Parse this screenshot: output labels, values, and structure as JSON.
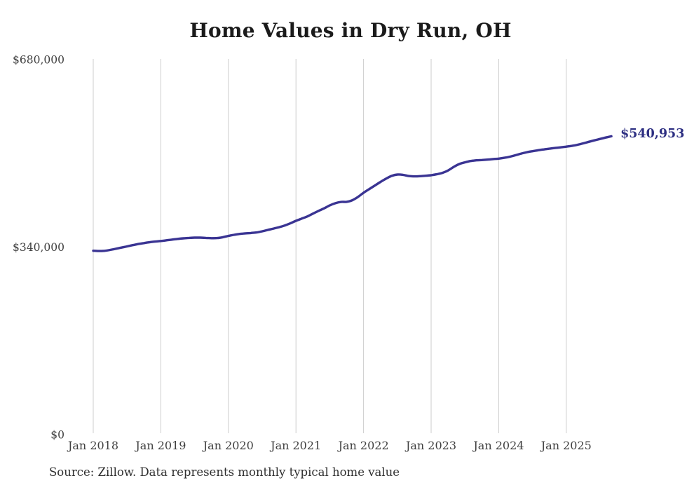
{
  "chart_title": "Home Values in Dry Run, OH",
  "source_note": "Source: Zillow. Data represents monthly typical home value",
  "colors": {
    "line": "#3a3493",
    "end_label": "#2d2f82",
    "title": "#1b1b1b",
    "axis_text": "#3f3f3f",
    "gridline": "#cdcdcd",
    "background": "#ffffff"
  },
  "chart_data": {
    "type": "line",
    "title": "Home Values in Dry Run, OH",
    "xlabel": "",
    "ylabel": "",
    "ylim": [
      0,
      680000
    ],
    "grid": "vertical-only",
    "legend": "none",
    "frequency": "monthly",
    "start_month": "2018-01",
    "end_month": "2025-09",
    "end_label": "$540,953",
    "end_value": 540953,
    "source": "Source: Zillow. Data represents monthly typical home value",
    "y_ticks": [
      {
        "label": "$0",
        "value": 0
      },
      {
        "label": "$340,000",
        "value": 340000
      },
      {
        "label": "$680,000",
        "value": 680000
      }
    ],
    "x_ticks": [
      {
        "label": "Jan 2018",
        "month_index": 0
      },
      {
        "label": "Jan 2019",
        "month_index": 12
      },
      {
        "label": "Jan 2020",
        "month_index": 24
      },
      {
        "label": "Jan 2021",
        "month_index": 36
      },
      {
        "label": "Jan 2022",
        "month_index": 48
      },
      {
        "label": "Jan 2023",
        "month_index": 60
      },
      {
        "label": "Jan 2024",
        "month_index": 72
      },
      {
        "label": "Jan 2025",
        "month_index": 84
      }
    ],
    "series": [
      {
        "name": "Typical home value",
        "values": [
          333400,
          332900,
          333300,
          334900,
          336900,
          339100,
          341300,
          343500,
          345600,
          347300,
          348800,
          350000,
          351000,
          352300,
          353600,
          354900,
          355900,
          356700,
          357100,
          357100,
          356700,
          356200,
          356400,
          357900,
          360300,
          362300,
          363900,
          364900,
          365600,
          366600,
          368600,
          371100,
          373600,
          376100,
          379100,
          383100,
          387700,
          391600,
          395600,
          400600,
          405600,
          410300,
          415600,
          419600,
          421900,
          422100,
          424900,
          430900,
          438500,
          445100,
          451600,
          458100,
          464100,
          469100,
          471600,
          471100,
          468900,
          468300,
          468600,
          469400,
          470300,
          472100,
          474600,
          478900,
          485300,
          490600,
          493700,
          496100,
          497300,
          497900,
          498600,
          499600,
          500400,
          501900,
          503900,
          506600,
          509600,
          512100,
          513900,
          515600,
          517100,
          518500,
          519700,
          520900,
          522100,
          523600,
          525600,
          528100,
          530900,
          533600,
          536100,
          538600,
          540953
        ]
      }
    ]
  }
}
